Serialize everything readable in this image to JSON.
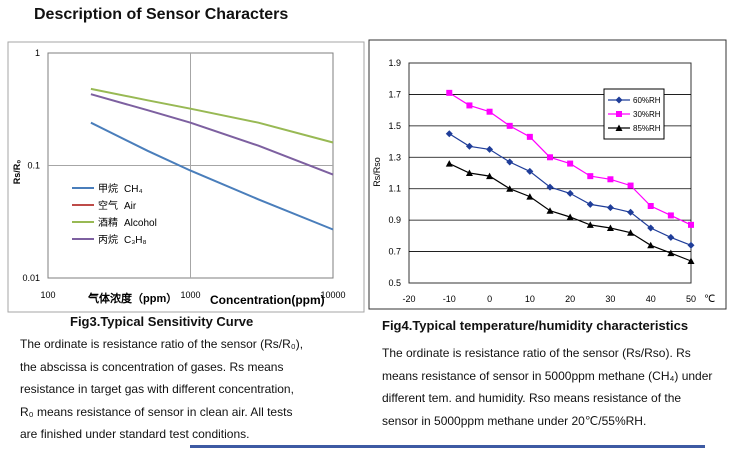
{
  "header": {
    "title": "Description of Sensor Characters"
  },
  "colors": {
    "accent_rule": "#3d5aa3"
  },
  "chart_data": [
    {
      "type": "line",
      "title": "",
      "ylabel": "Rs/R₀",
      "xlabel_cn": "气体浓度（ppm）",
      "xlabel": "Concentration(ppm)",
      "xscale": "log",
      "yscale": "log",
      "xlim": [
        100,
        10000
      ],
      "ylim": [
        0.01,
        1
      ],
      "xticks": [
        "100",
        "1000",
        "10000"
      ],
      "yticks": [
        "1",
        "0.1",
        "0.01"
      ],
      "grid": true,
      "legend_position": "center-left",
      "series": [
        {
          "name_cn": "甲烷",
          "name": "CH₄",
          "color": "#4a7ebb",
          "points": [
            [
              200,
              0.24
            ],
            [
              500,
              0.135
            ],
            [
              1000,
              0.09
            ],
            [
              3000,
              0.05
            ],
            [
              10000,
              0.027
            ]
          ]
        },
        {
          "name_cn": "空气",
          "name": "Air",
          "color": "#be4b48",
          "points": []
        },
        {
          "name_cn": "酒精",
          "name": "Alcohol",
          "color": "#98b954",
          "points": [
            [
              200,
              0.48
            ],
            [
              500,
              0.38
            ],
            [
              1000,
              0.32
            ],
            [
              3000,
              0.24
            ],
            [
              10000,
              0.16
            ]
          ]
        },
        {
          "name_cn": "丙烷",
          "name": "C₃H₈",
          "color": "#7d60a0",
          "points": [
            [
              200,
              0.43
            ],
            [
              500,
              0.31
            ],
            [
              1000,
              0.24
            ],
            [
              3000,
              0.15
            ],
            [
              10000,
              0.083
            ]
          ]
        }
      ]
    },
    {
      "type": "line",
      "title": "",
      "ylabel": "Rs/Rso",
      "xlabel": "℃",
      "xlim": [
        -20,
        50
      ],
      "ylim": [
        0.5,
        1.9
      ],
      "xticks": [
        "-20",
        "-10",
        "0",
        "10",
        "20",
        "30",
        "40",
        "50"
      ],
      "yticks": [
        "1.9",
        "1.7",
        "1.5",
        "1.3",
        "1.1",
        "0.9",
        "0.7",
        "0.5"
      ],
      "grid": true,
      "legend_position": "top-right",
      "series": [
        {
          "name": "60%RH",
          "color": "#1f3d99",
          "marker": "diamond",
          "x": [
            -10,
            -5,
            0,
            5,
            10,
            15,
            20,
            25,
            30,
            35,
            40,
            45,
            50
          ],
          "y": [
            1.45,
            1.37,
            1.35,
            1.27,
            1.21,
            1.11,
            1.07,
            1.0,
            0.98,
            0.95,
            0.85,
            0.79,
            0.74
          ]
        },
        {
          "name": "30%RH",
          "color": "#ff00ff",
          "marker": "square",
          "x": [
            -10,
            -5,
            0,
            5,
            10,
            15,
            20,
            25,
            30,
            35,
            40,
            45,
            50
          ],
          "y": [
            1.71,
            1.63,
            1.59,
            1.5,
            1.43,
            1.3,
            1.26,
            1.18,
            1.16,
            1.12,
            0.99,
            0.93,
            0.87
          ]
        },
        {
          "name": "85%RH",
          "color": "#000000",
          "marker": "triangle",
          "x": [
            -10,
            -5,
            0,
            5,
            10,
            15,
            20,
            25,
            30,
            35,
            40,
            45,
            50
          ],
          "y": [
            1.26,
            1.2,
            1.18,
            1.1,
            1.05,
            0.96,
            0.92,
            0.87,
            0.85,
            0.82,
            0.74,
            0.69,
            0.64
          ]
        }
      ]
    }
  ],
  "fig3": {
    "caption": "Fig3.Typical Sensitivity Curve",
    "desc_lines": [
      "The ordinate is resistance ratio of the sensor (Rs/R₀),",
      "the abscissa is concentration of gases. Rs means",
      "resistance in target gas with different concentration,",
      "R₀ means resistance of sensor in clean air. All tests",
      "are finished under standard test conditions."
    ]
  },
  "fig4": {
    "caption": "Fig4.Typical temperature/humidity characteristics",
    "desc_lines": [
      "The ordinate is resistance ratio of the sensor (Rs/Rso). Rs",
      "means resistance of sensor in 5000ppm methane (CH₄) under",
      "different tem. and humidity. Rso means resistance of the",
      "sensor in 5000ppm methane under 20℃/55%RH."
    ]
  }
}
